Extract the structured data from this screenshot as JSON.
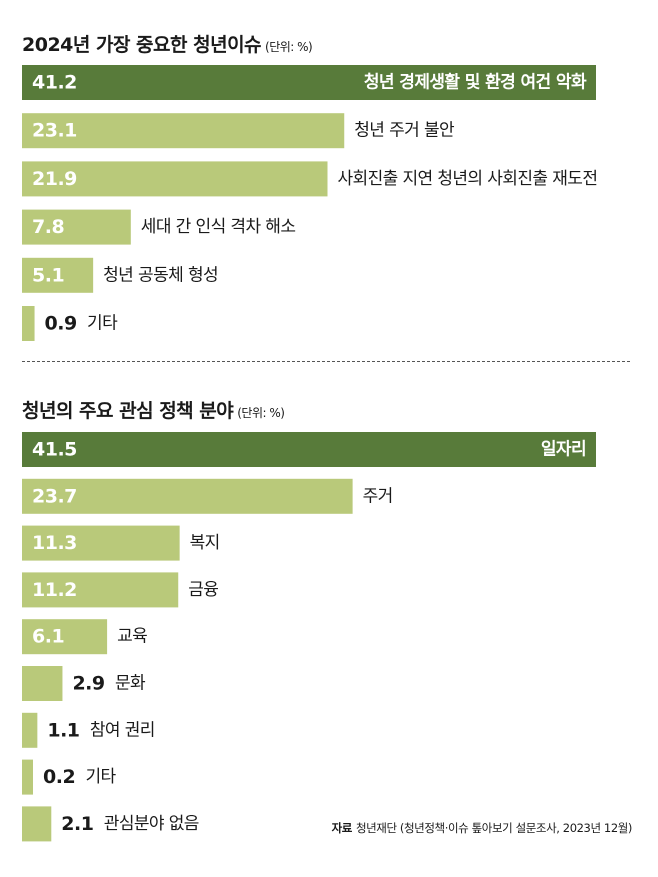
{
  "chart_data": [
    {
      "type": "bar",
      "title": "2024년 가장 중요한 청년이슈",
      "unit_label": "(단위: %)",
      "categories": [
        "청년 경제생활 및 환경 여건 악화",
        "청년 주거 불안",
        "사회진출 지연 청년의 사회진출 재도전",
        "세대 간 인식 격차 해소",
        "청년 공동체 형성",
        "기타"
      ],
      "values": [
        41.2,
        23.1,
        21.9,
        7.8,
        5.1,
        0.9
      ],
      "value_labels": [
        "41.2",
        "23.1",
        "21.9",
        "7.8",
        "5.1",
        "0.9"
      ],
      "orientation": "horizontal",
      "highlight_index": 0
    },
    {
      "type": "bar",
      "title": "청년의 주요 관심 정책 분야",
      "unit_label": "(단위: %)",
      "categories": [
        "일자리",
        "주거",
        "복지",
        "금융",
        "교육",
        "문화",
        "참여 권리",
        "기타",
        "관심분야 없음"
      ],
      "values": [
        41.5,
        23.7,
        11.3,
        11.2,
        6.1,
        2.9,
        1.1,
        0.2,
        2.1
      ],
      "value_labels": [
        "41.5",
        "23.7",
        "11.3",
        "11.2",
        "6.1",
        "2.9",
        "1.1",
        "0.2",
        "2.1"
      ],
      "orientation": "horizontal",
      "highlight_index": 0
    }
  ],
  "source": {
    "label": "자료",
    "text": "청년재단 (청년정책·이슈 톺아보기 설문조사, 2023년 12월)"
  },
  "colors": {
    "highlight": "#587b3a",
    "bar": "#b9c97a",
    "text_on_highlight": "#ffffff",
    "text_on_bar": "#ffffff",
    "text": "#1a1a1a"
  }
}
